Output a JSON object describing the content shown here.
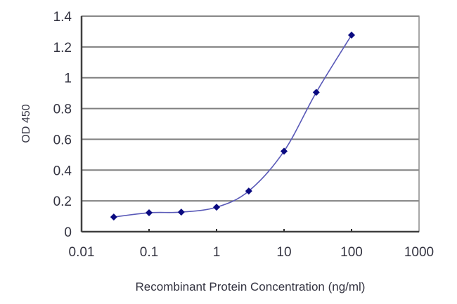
{
  "chart_data": {
    "type": "line",
    "title": "",
    "xlabel": "Recombinant Protein Concentration (ng/ml)",
    "ylabel": "OD 450",
    "xscale": "log",
    "xlim": [
      0.01,
      1000
    ],
    "ylim": [
      0,
      1.4
    ],
    "x_ticks": [
      0.01,
      0.1,
      1,
      10,
      100,
      1000
    ],
    "x_tick_labels": [
      "0.01",
      "0.1",
      "1",
      "10",
      "100",
      "1000"
    ],
    "y_ticks": [
      0,
      0.2,
      0.4,
      0.6,
      0.8,
      1,
      1.2,
      1.4
    ],
    "y_tick_labels": [
      "0",
      "0.2",
      "0.4",
      "0.6",
      "0.8",
      "1",
      "1.2",
      "1.4"
    ],
    "grid": {
      "horizontal": true,
      "vertical": false
    },
    "legend": null,
    "series": [
      {
        "name": "OD 450",
        "marker": "diamond",
        "smooth": true,
        "x": [
          0.03,
          0.1,
          0.3,
          1,
          3,
          10,
          30,
          100
        ],
        "values": [
          0.095,
          0.123,
          0.127,
          0.159,
          0.264,
          0.523,
          0.905,
          1.277
        ]
      }
    ],
    "colors": {
      "marker": "#0a0a80",
      "line": "#5a5ab8",
      "grid": "#808080",
      "axis": "#404040",
      "text": "#333340"
    }
  }
}
